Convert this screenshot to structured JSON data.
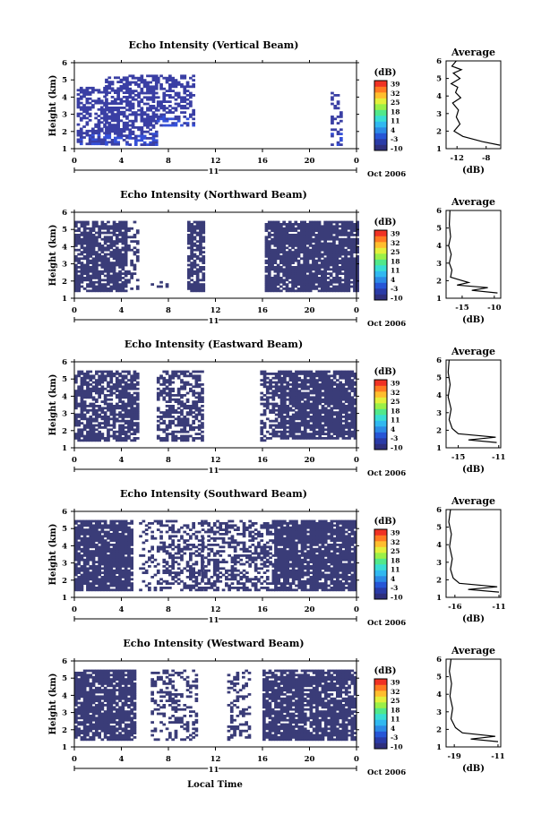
{
  "colorbar": {
    "unit_label": "(dB)",
    "ticks": [
      "39",
      "32",
      "25",
      "18",
      "11",
      "4",
      "-3",
      "-10"
    ],
    "colors": [
      "#2e2f7d",
      "#2a3ba7",
      "#2756d6",
      "#2c8ae6",
      "#31b8f0",
      "#39ded4",
      "#52e88a",
      "#9bf048",
      "#e4ef3b",
      "#ffbe2e",
      "#ff7a22",
      "#f03224"
    ]
  },
  "date_label": "Oct 2006",
  "xlabel": "Local Time",
  "day_label": "11",
  "chart_data": [
    {
      "type": "heatmap",
      "title": "Echo Intensity (Vertical Beam)",
      "xlabel": "",
      "ylabel": "Height (km)",
      "x_ticks": [
        "0",
        "4",
        "8",
        "12",
        "16",
        "20",
        "0"
      ],
      "y_ticks": [
        "1",
        "2",
        "3",
        "4",
        "5",
        "6"
      ],
      "xlim": [
        0,
        24
      ],
      "ylim": [
        1,
        6
      ],
      "clim": [
        -10,
        39
      ],
      "color": "#3a3fa4",
      "segments": [
        {
          "x": [
            0.2,
            2.6
          ],
          "y": [
            1.2,
            4.6
          ],
          "density": 0.6
        },
        {
          "x": [
            2.6,
            4.6
          ],
          "y": [
            1.2,
            5.2
          ],
          "density": 0.7
        },
        {
          "x": [
            4.6,
            7.0
          ],
          "y": [
            1.2,
            5.3
          ],
          "density": 0.6
        },
        {
          "x": [
            7.0,
            10.1
          ],
          "y": [
            2.3,
            5.3
          ],
          "density": 0.45
        },
        {
          "x": [
            21.8,
            22.6
          ],
          "y": [
            1.2,
            4.3
          ],
          "density": 0.35
        }
      ],
      "avg_title": "Average",
      "avg_xticks": [
        "-12",
        "-8"
      ],
      "avg_yticks": [
        "1",
        "2",
        "3",
        "4",
        "5",
        "6"
      ],
      "avg_xlim": [
        -13.5,
        -6.0
      ],
      "avg_x": [
        -6.1,
        -8.5,
        -11.2,
        -12.4,
        -11.6,
        -12.1,
        -11.8,
        -12.6,
        -11.5,
        -12.2,
        -11.9,
        -12.8,
        -11.6,
        -12.5,
        -11.4,
        -12.7,
        -12.1
      ],
      "avg_y": [
        1.2,
        1.4,
        1.7,
        2.0,
        2.4,
        2.8,
        3.2,
        3.6,
        3.9,
        4.2,
        4.5,
        4.7,
        5.0,
        5.3,
        5.5,
        5.7,
        6.0
      ],
      "avg_xlabel": "(dB)"
    },
    {
      "type": "heatmap",
      "title": "Echo Intensity (Northward Beam)",
      "xlabel": "",
      "ylabel": "Height (km)",
      "x_ticks": [
        "0",
        "4",
        "8",
        "12",
        "16",
        "20",
        "0"
      ],
      "y_ticks": [
        "1",
        "2",
        "3",
        "4",
        "5",
        "6"
      ],
      "xlim": [
        0,
        24
      ],
      "ylim": [
        1,
        6
      ],
      "clim": [
        -10,
        39
      ],
      "color": "#3a3c78",
      "segments": [
        {
          "x": [
            0.0,
            4.5
          ],
          "y": [
            1.4,
            5.5
          ],
          "density": 0.8
        },
        {
          "x": [
            4.5,
            5.5
          ],
          "y": [
            1.4,
            5.5
          ],
          "density": 0.25
        },
        {
          "x": [
            6.5,
            7.8
          ],
          "y": [
            1.5,
            2.0
          ],
          "density": 0.3
        },
        {
          "x": [
            9.6,
            10.9
          ],
          "y": [
            1.4,
            5.5
          ],
          "density": 0.75
        },
        {
          "x": [
            16.2,
            24.0
          ],
          "y": [
            1.4,
            5.5
          ],
          "density": 0.88
        }
      ],
      "avg_title": "Average",
      "avg_xticks": [
        "-15",
        "-10"
      ],
      "avg_yticks": [
        "1",
        "2",
        "3",
        "4",
        "5",
        "6"
      ],
      "avg_xlim": [
        -17.5,
        -9.0
      ],
      "avg_x": [
        -9.5,
        -13.5,
        -11.0,
        -15.8,
        -14.0,
        -16.8,
        -16.6,
        -17.0,
        -16.7,
        -17.1,
        -16.8,
        -17.0,
        -16.9
      ],
      "avg_y": [
        1.3,
        1.45,
        1.6,
        1.75,
        1.9,
        2.2,
        2.6,
        3.0,
        3.5,
        4.0,
        4.5,
        5.2,
        6.0
      ],
      "avg_xlabel": "(dB)"
    },
    {
      "type": "heatmap",
      "title": "Echo Intensity (Eastward Beam)",
      "xlabel": "",
      "ylabel": "Height (km)",
      "x_ticks": [
        "0",
        "4",
        "8",
        "12",
        "16",
        "20",
        "0"
      ],
      "y_ticks": [
        "1",
        "2",
        "3",
        "4",
        "5",
        "6"
      ],
      "xlim": [
        0,
        24
      ],
      "ylim": [
        1,
        6
      ],
      "clim": [
        -10,
        39
      ],
      "color": "#3a3c78",
      "segments": [
        {
          "x": [
            0.0,
            5.5
          ],
          "y": [
            1.4,
            5.5
          ],
          "density": 0.72
        },
        {
          "x": [
            7.0,
            10.8
          ],
          "y": [
            1.4,
            5.5
          ],
          "density": 0.6
        },
        {
          "x": [
            15.8,
            17.5
          ],
          "y": [
            1.4,
            5.5
          ],
          "density": 0.55
        },
        {
          "x": [
            17.5,
            24.0
          ],
          "y": [
            1.5,
            5.5
          ],
          "density": 0.85
        }
      ],
      "avg_title": "Average",
      "avg_xticks": [
        "-15",
        "-11"
      ],
      "avg_yticks": [
        "1",
        "2",
        "3",
        "4",
        "5",
        "6"
      ],
      "avg_xlim": [
        -16.2,
        -10.8
      ],
      "avg_x": [
        -11.2,
        -14.0,
        -11.3,
        -15.0,
        -15.6,
        -15.9,
        -15.7,
        -16.0,
        -15.8,
        -16.0,
        -15.9
      ],
      "avg_y": [
        1.3,
        1.45,
        1.6,
        1.8,
        2.1,
        2.6,
        3.2,
        3.9,
        4.6,
        5.3,
        6.0
      ],
      "avg_xlabel": "(dB)"
    },
    {
      "type": "heatmap",
      "title": "Echo Intensity (Southward Beam)",
      "xlabel": "",
      "ylabel": "Height (km)",
      "x_ticks": [
        "0",
        "4",
        "8",
        "12",
        "16",
        "20",
        "0"
      ],
      "y_ticks": [
        "1",
        "2",
        "3",
        "4",
        "5",
        "6"
      ],
      "xlim": [
        0,
        24
      ],
      "ylim": [
        1,
        6
      ],
      "clim": [
        -10,
        39
      ],
      "color": "#3a3c78",
      "segments": [
        {
          "x": [
            0.0,
            4.8
          ],
          "y": [
            1.4,
            5.5
          ],
          "density": 0.9
        },
        {
          "x": [
            5.5,
            7.0
          ],
          "y": [
            1.4,
            5.5
          ],
          "density": 0.3
        },
        {
          "x": [
            7.0,
            10.8
          ],
          "y": [
            1.4,
            5.5
          ],
          "density": 0.45
        },
        {
          "x": [
            10.8,
            17.0
          ],
          "y": [
            1.4,
            5.5
          ],
          "density": 0.5
        },
        {
          "x": [
            17.0,
            24.0
          ],
          "y": [
            1.4,
            5.5
          ],
          "density": 0.9
        }
      ],
      "avg_title": "Average",
      "avg_xticks": [
        "-16",
        "-11"
      ],
      "avg_yticks": [
        "1",
        "2",
        "3",
        "4",
        "5",
        "6"
      ],
      "avg_xlim": [
        -17.0,
        -10.8
      ],
      "avg_x": [
        -11.0,
        -14.5,
        -11.2,
        -15.5,
        -16.2,
        -16.5,
        -16.3,
        -16.6,
        -16.4,
        -16.7,
        -16.5
      ],
      "avg_y": [
        1.3,
        1.45,
        1.6,
        1.8,
        2.1,
        2.6,
        3.2,
        3.9,
        4.6,
        5.3,
        6.0
      ],
      "avg_xlabel": "(dB)"
    },
    {
      "type": "heatmap",
      "title": "Echo Intensity (Westward Beam)",
      "xlabel": "",
      "ylabel": "Height (km)",
      "x_ticks": [
        "0",
        "4",
        "8",
        "12",
        "16",
        "20",
        "0"
      ],
      "y_ticks": [
        "1",
        "2",
        "3",
        "4",
        "5",
        "6"
      ],
      "xlim": [
        0,
        24
      ],
      "ylim": [
        1,
        6
      ],
      "clim": [
        -10,
        39
      ],
      "color": "#3a3c78",
      "segments": [
        {
          "x": [
            0.0,
            5.2
          ],
          "y": [
            1.4,
            5.5
          ],
          "density": 0.82
        },
        {
          "x": [
            6.5,
            10.5
          ],
          "y": [
            1.4,
            5.5
          ],
          "density": 0.35
        },
        {
          "x": [
            13.0,
            15.0
          ],
          "y": [
            1.4,
            5.5
          ],
          "density": 0.35
        },
        {
          "x": [
            16.0,
            24.0
          ],
          "y": [
            1.4,
            5.5
          ],
          "density": 0.85
        }
      ],
      "avg_title": "Average",
      "avg_xticks": [
        "-19",
        "-11"
      ],
      "avg_yticks": [
        "1",
        "2",
        "3",
        "4",
        "5",
        "6"
      ],
      "avg_xlim": [
        -20.5,
        -10.5
      ],
      "avg_x": [
        -11.0,
        -16.0,
        -11.5,
        -17.5,
        -18.8,
        -19.6,
        -19.3,
        -19.8,
        -19.5,
        -19.9,
        -19.6
      ],
      "avg_y": [
        1.3,
        1.45,
        1.6,
        1.8,
        2.1,
        2.6,
        3.2,
        3.9,
        4.6,
        5.3,
        6.0
      ],
      "avg_xlabel": "(dB)"
    }
  ]
}
